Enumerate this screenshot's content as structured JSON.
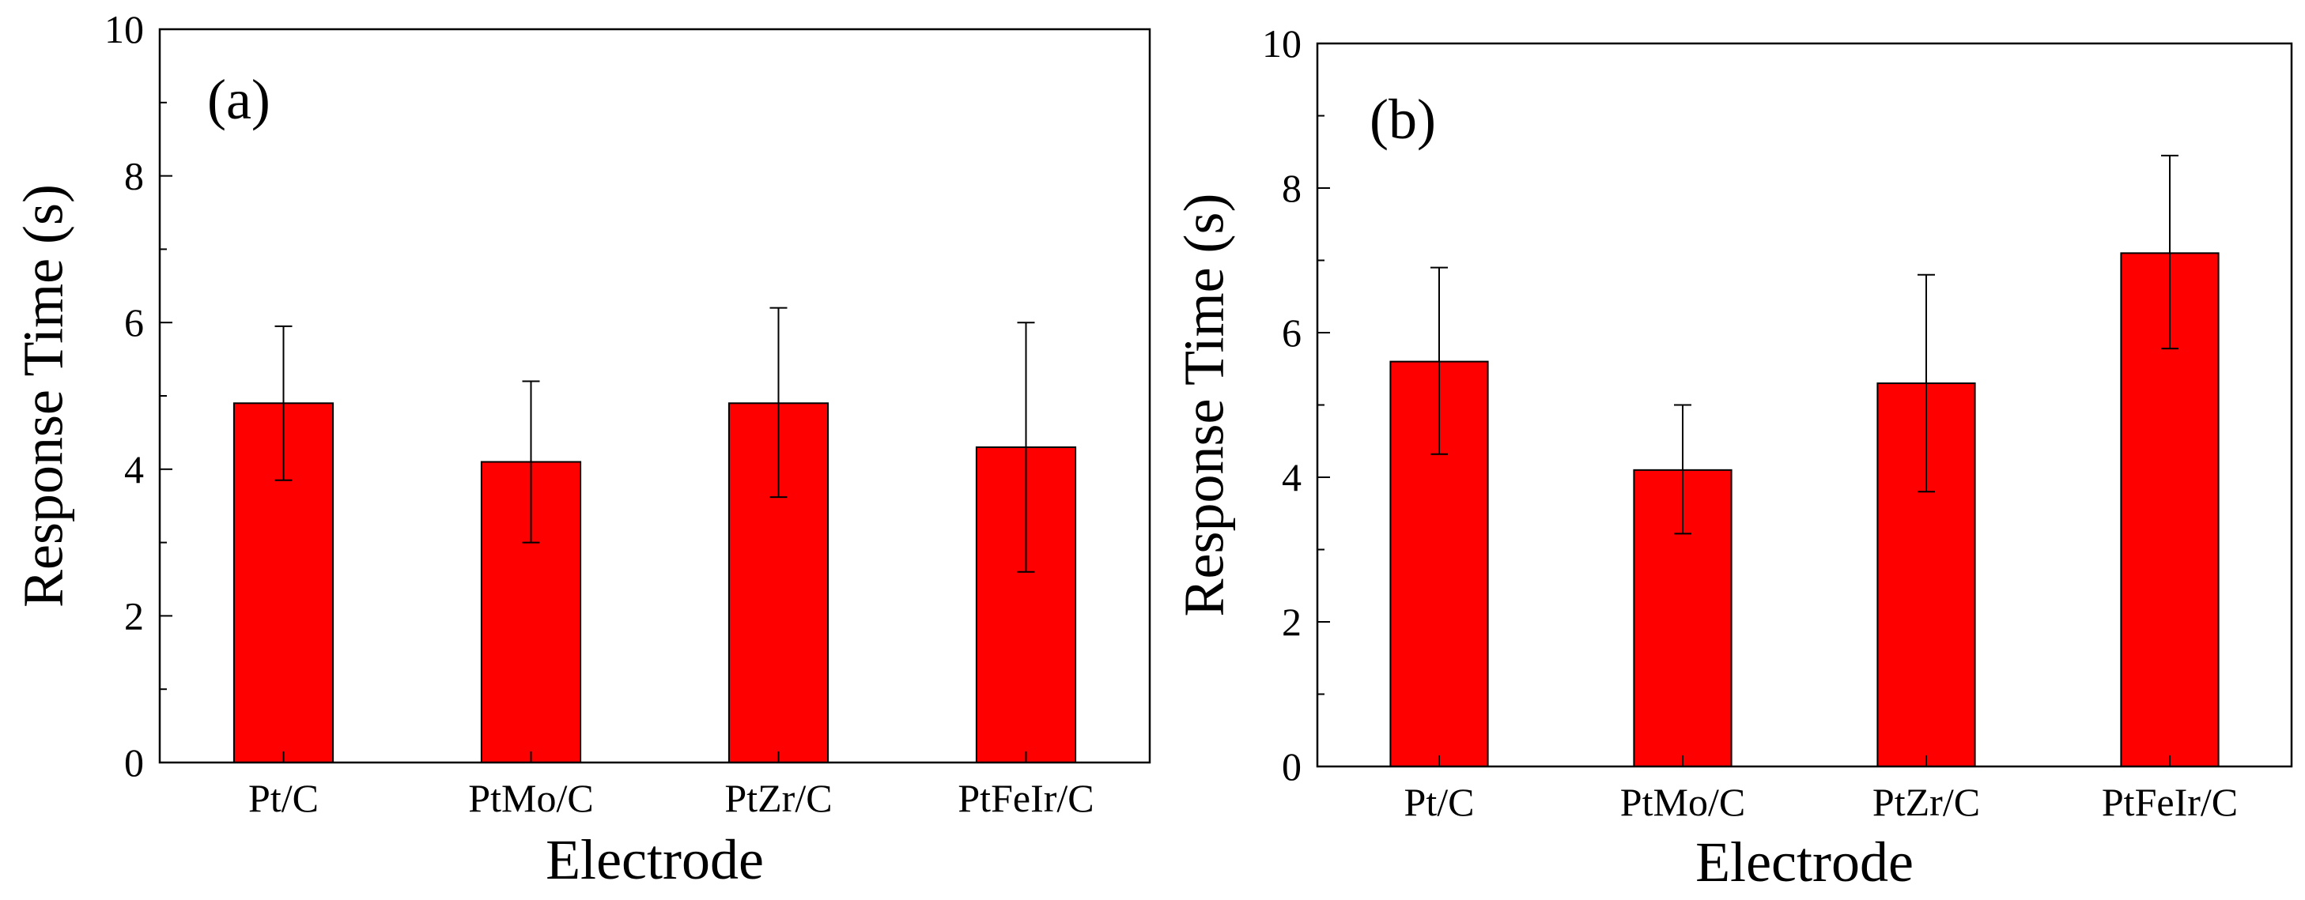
{
  "chart_data": [
    {
      "type": "bar",
      "panel_label": "(a)",
      "categories": [
        "Pt/C",
        "PtMo/C",
        "PtZr/C",
        "PtFeIr/C"
      ],
      "values": [
        4.9,
        4.1,
        4.9,
        4.3
      ],
      "error_upper": [
        5.95,
        5.2,
        6.2,
        6.0
      ],
      "error_lower": [
        3.85,
        3.0,
        3.62,
        2.6
      ],
      "ylim": [
        0,
        10
      ],
      "yticks": [
        0,
        2,
        4,
        6,
        8,
        10
      ],
      "ytick_labels": [
        "0",
        "2",
        "4",
        "6",
        "8",
        "10"
      ],
      "xlabel": "Electrode",
      "ylabel": "Response Time (s)",
      "bar_color": "#ff0000",
      "grid": false
    },
    {
      "type": "bar",
      "panel_label": "(b)",
      "categories": [
        "Pt/C",
        "PtMo/C",
        "PtZr/C",
        "PtFeIr/C"
      ],
      "values": [
        5.6,
        4.1,
        5.3,
        7.1
      ],
      "error_upper": [
        6.9,
        5.0,
        6.8,
        8.45
      ],
      "error_lower": [
        4.32,
        3.22,
        3.8,
        5.78
      ],
      "ylim": [
        0,
        10
      ],
      "yticks": [
        0,
        2,
        4,
        6,
        8,
        10
      ],
      "ytick_labels": [
        "0",
        "2",
        "4",
        "6",
        "8",
        "10"
      ],
      "xlabel": "Electrode",
      "ylabel": "Response Time (s)",
      "bar_color": "#ff0000",
      "grid": false
    }
  ]
}
